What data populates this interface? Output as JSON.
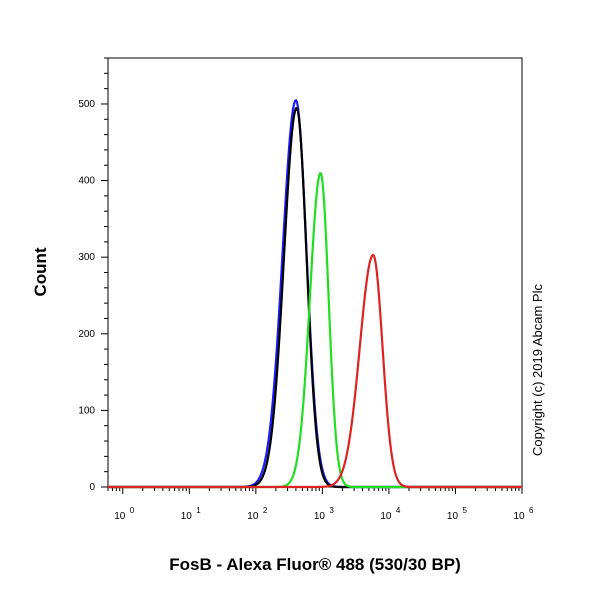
{
  "chart_data": {
    "type": "line",
    "title": "",
    "xlabel": "FosB - Alexa Fluor® 488 (530/30 BP)",
    "ylabel": "Count",
    "x_scale": "log",
    "xlim": [
      0.6,
      1000000
    ],
    "ylim": [
      0,
      560
    ],
    "x_ticks": [
      {
        "value": 1,
        "base": "10",
        "exp": "0"
      },
      {
        "value": 10,
        "base": "10",
        "exp": "1"
      },
      {
        "value": 100,
        "base": "10",
        "exp": "2"
      },
      {
        "value": 1000,
        "base": "10",
        "exp": "3"
      },
      {
        "value": 10000,
        "base": "10",
        "exp": "4"
      },
      {
        "value": 100000,
        "base": "10",
        "exp": "5"
      },
      {
        "value": 1000000,
        "base": "10",
        "exp": "6"
      }
    ],
    "y_ticks": [
      0,
      100,
      200,
      300,
      400,
      500
    ],
    "grid": false,
    "annotation": "Copyright (c) 2019 Abcam Plc",
    "series": [
      {
        "color": "#1a1aff",
        "peak_x": 400,
        "peak_y": 505,
        "width_left": 0.2,
        "width_right": 0.16
      },
      {
        "color": "#000000",
        "peak_x": 410,
        "peak_y": 495,
        "width_left": 0.19,
        "width_right": 0.15
      },
      {
        "color": "#22dd22",
        "peak_x": 940,
        "peak_y": 410,
        "width_left": 0.16,
        "width_right": 0.12
      },
      {
        "color": "#dd2222",
        "peak_x": 5800,
        "peak_y": 303,
        "width_left": 0.2,
        "width_right": 0.14
      }
    ]
  }
}
